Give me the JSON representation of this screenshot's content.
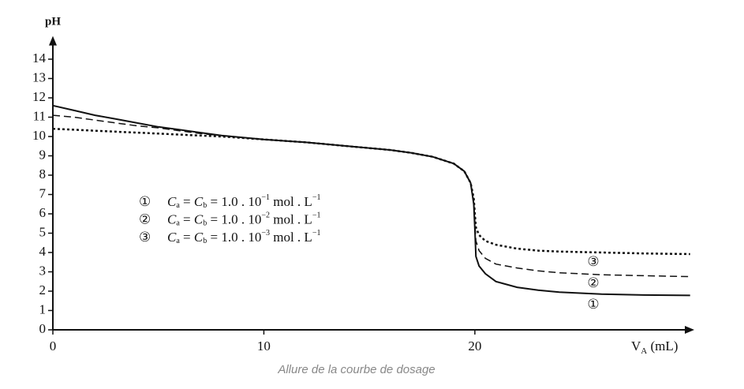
{
  "chart_data": {
    "type": "line",
    "y_label": "pH",
    "x_label": {
      "main": "V",
      "sub": "A",
      "unit": " (mL)"
    },
    "caption": "Allure de la courbe de dosage",
    "xlim": [
      0,
      30.4
    ],
    "ylim": [
      0,
      15.2
    ],
    "xticks": [
      0,
      10,
      20
    ],
    "yticks": [
      0,
      1,
      2,
      3,
      4,
      5,
      6,
      7,
      8,
      9,
      10,
      11,
      12,
      13,
      14
    ],
    "legend_text": {
      "c": "C",
      "a": "a",
      "eq1": " = ",
      "b": "b",
      "eq2": " = 1.0 . 10",
      "unit": " mol . L",
      "unit_exp": "−1"
    },
    "x": [
      0,
      1,
      2,
      3,
      4,
      5,
      6,
      7,
      8,
      10,
      12,
      14,
      16,
      17,
      18,
      19,
      19.5,
      19.8,
      19.95,
      20,
      20.05,
      20.2,
      20.5,
      21,
      22,
      23,
      24,
      26,
      28,
      30.2
    ],
    "series": [
      {
        "name": "①",
        "exponent": "−1",
        "color": "#111111",
        "dash": "solid",
        "values": [
          11.6,
          11.35,
          11.1,
          10.9,
          10.7,
          10.5,
          10.35,
          10.2,
          10.05,
          9.85,
          9.7,
          9.5,
          9.3,
          9.15,
          8.95,
          8.6,
          8.2,
          7.6,
          6.5,
          5.2,
          3.8,
          3.3,
          2.9,
          2.5,
          2.2,
          2.05,
          1.95,
          1.85,
          1.8,
          1.78
        ]
      },
      {
        "name": "②",
        "exponent": "−2",
        "color": "#111111",
        "dash": "dashed",
        "values": [
          11.1,
          11.0,
          10.85,
          10.7,
          10.55,
          10.45,
          10.3,
          10.15,
          10.05,
          9.85,
          9.7,
          9.5,
          9.3,
          9.15,
          8.95,
          8.6,
          8.2,
          7.6,
          6.6,
          5.6,
          4.6,
          4.1,
          3.7,
          3.4,
          3.2,
          3.05,
          2.95,
          2.85,
          2.8,
          2.75
        ]
      },
      {
        "name": "③",
        "exponent": "−3",
        "color": "#111111",
        "dash": "dotted",
        "values": [
          10.4,
          10.35,
          10.3,
          10.25,
          10.2,
          10.15,
          10.1,
          10.05,
          10.0,
          9.85,
          9.7,
          9.5,
          9.3,
          9.15,
          8.95,
          8.6,
          8.2,
          7.6,
          6.8,
          6.0,
          5.3,
          4.9,
          4.6,
          4.4,
          4.2,
          4.1,
          4.05,
          4.0,
          3.95,
          3.92
        ]
      }
    ]
  }
}
